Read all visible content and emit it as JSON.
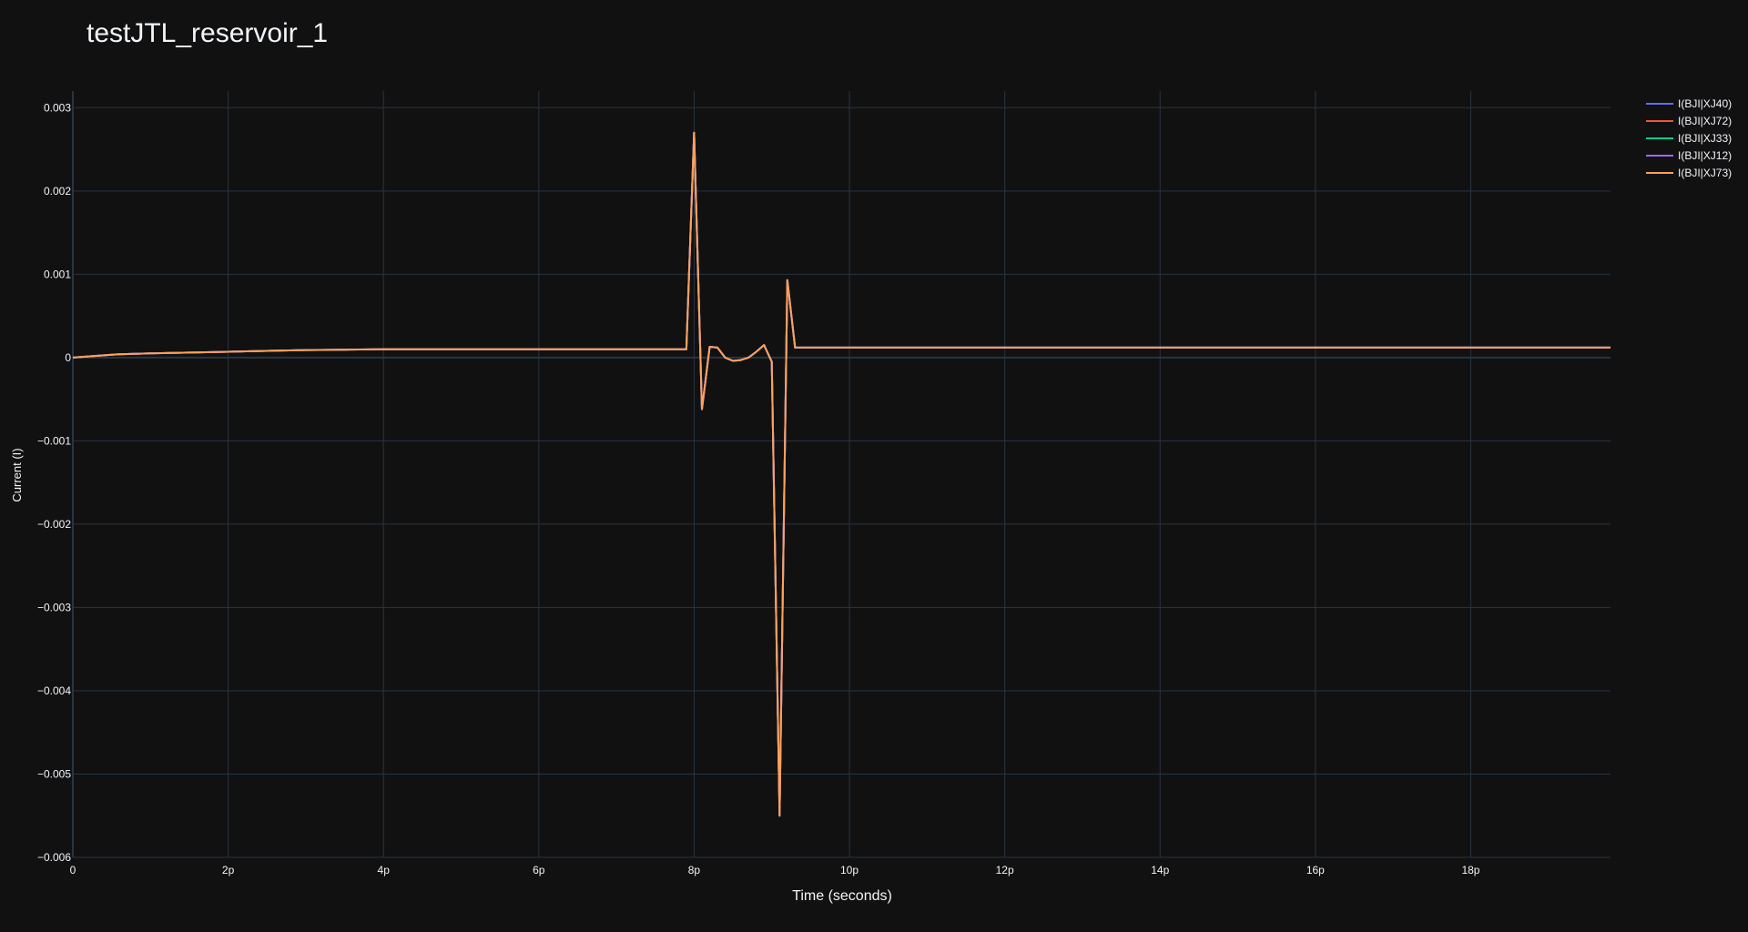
{
  "chart_data": {
    "type": "line",
    "title": "testJTL_reservoir_1",
    "xlabel": "Time (seconds)",
    "ylabel": "Current (I)",
    "xlim": [
      0,
      19.8
    ],
    "ylim": [
      -0.006,
      0.0032
    ],
    "x_ticks": [
      {
        "value": 0,
        "label": "0"
      },
      {
        "value": 2,
        "label": "2p"
      },
      {
        "value": 4,
        "label": "4p"
      },
      {
        "value": 6,
        "label": "6p"
      },
      {
        "value": 8,
        "label": "8p"
      },
      {
        "value": 10,
        "label": "10p"
      },
      {
        "value": 12,
        "label": "12p"
      },
      {
        "value": 14,
        "label": "14p"
      },
      {
        "value": 16,
        "label": "16p"
      },
      {
        "value": 18,
        "label": "18p"
      }
    ],
    "y_ticks": [
      {
        "value": 0.003,
        "label": "0.003"
      },
      {
        "value": 0.002,
        "label": "0.002"
      },
      {
        "value": 0.001,
        "label": "0.001"
      },
      {
        "value": 0,
        "label": "0"
      },
      {
        "value": -0.001,
        "label": "−0.001"
      },
      {
        "value": -0.002,
        "label": "−0.002"
      },
      {
        "value": -0.003,
        "label": "−0.003"
      },
      {
        "value": -0.004,
        "label": "−0.004"
      },
      {
        "value": -0.005,
        "label": "−0.005"
      },
      {
        "value": -0.006,
        "label": "−0.006"
      }
    ],
    "grid": true,
    "legend_position": "top-right",
    "background_color": "#111111",
    "grid_color": "#283442",
    "series": [
      {
        "name": "I(BJI|XJ40)",
        "color": "#636efa"
      },
      {
        "name": "I(BJI|XJ72)",
        "color": "#EF553B"
      },
      {
        "name": "I(BJI|XJ33)",
        "color": "#00cc96"
      },
      {
        "name": "I(BJI|XJ12)",
        "color": "#ab63fa"
      },
      {
        "name": "I(BJI|XJ73)",
        "color": "#FFA15A"
      }
    ],
    "x": [
      0,
      0.3,
      0.6,
      1.0,
      1.5,
      2.0,
      2.5,
      3.0,
      3.5,
      4.0,
      5.0,
      6.0,
      7.0,
      7.9,
      8.0,
      8.1,
      8.2,
      8.3,
      8.4,
      8.5,
      8.6,
      8.7,
      8.8,
      8.9,
      9.0,
      9.1,
      9.2,
      9.3,
      9.4,
      10.0,
      12.0,
      14.0,
      16.0,
      18.0,
      19.8
    ],
    "values": [
      0,
      2e-05,
      4e-05,
      5e-05,
      6e-05,
      7e-05,
      8e-05,
      9e-05,
      9.5e-05,
      0.0001,
      0.0001,
      0.0001,
      0.0001,
      0.0001,
      0.0027,
      -0.00062,
      0.00013,
      0.00012,
      0.0,
      -4e-05,
      -3e-05,
      0.0,
      7e-05,
      0.00015,
      -5e-05,
      -0.0055,
      0.00093,
      0.00012,
      0.00012,
      0.00012,
      0.00012,
      0.00012,
      0.00012,
      0.00012,
      0.00012
    ]
  }
}
